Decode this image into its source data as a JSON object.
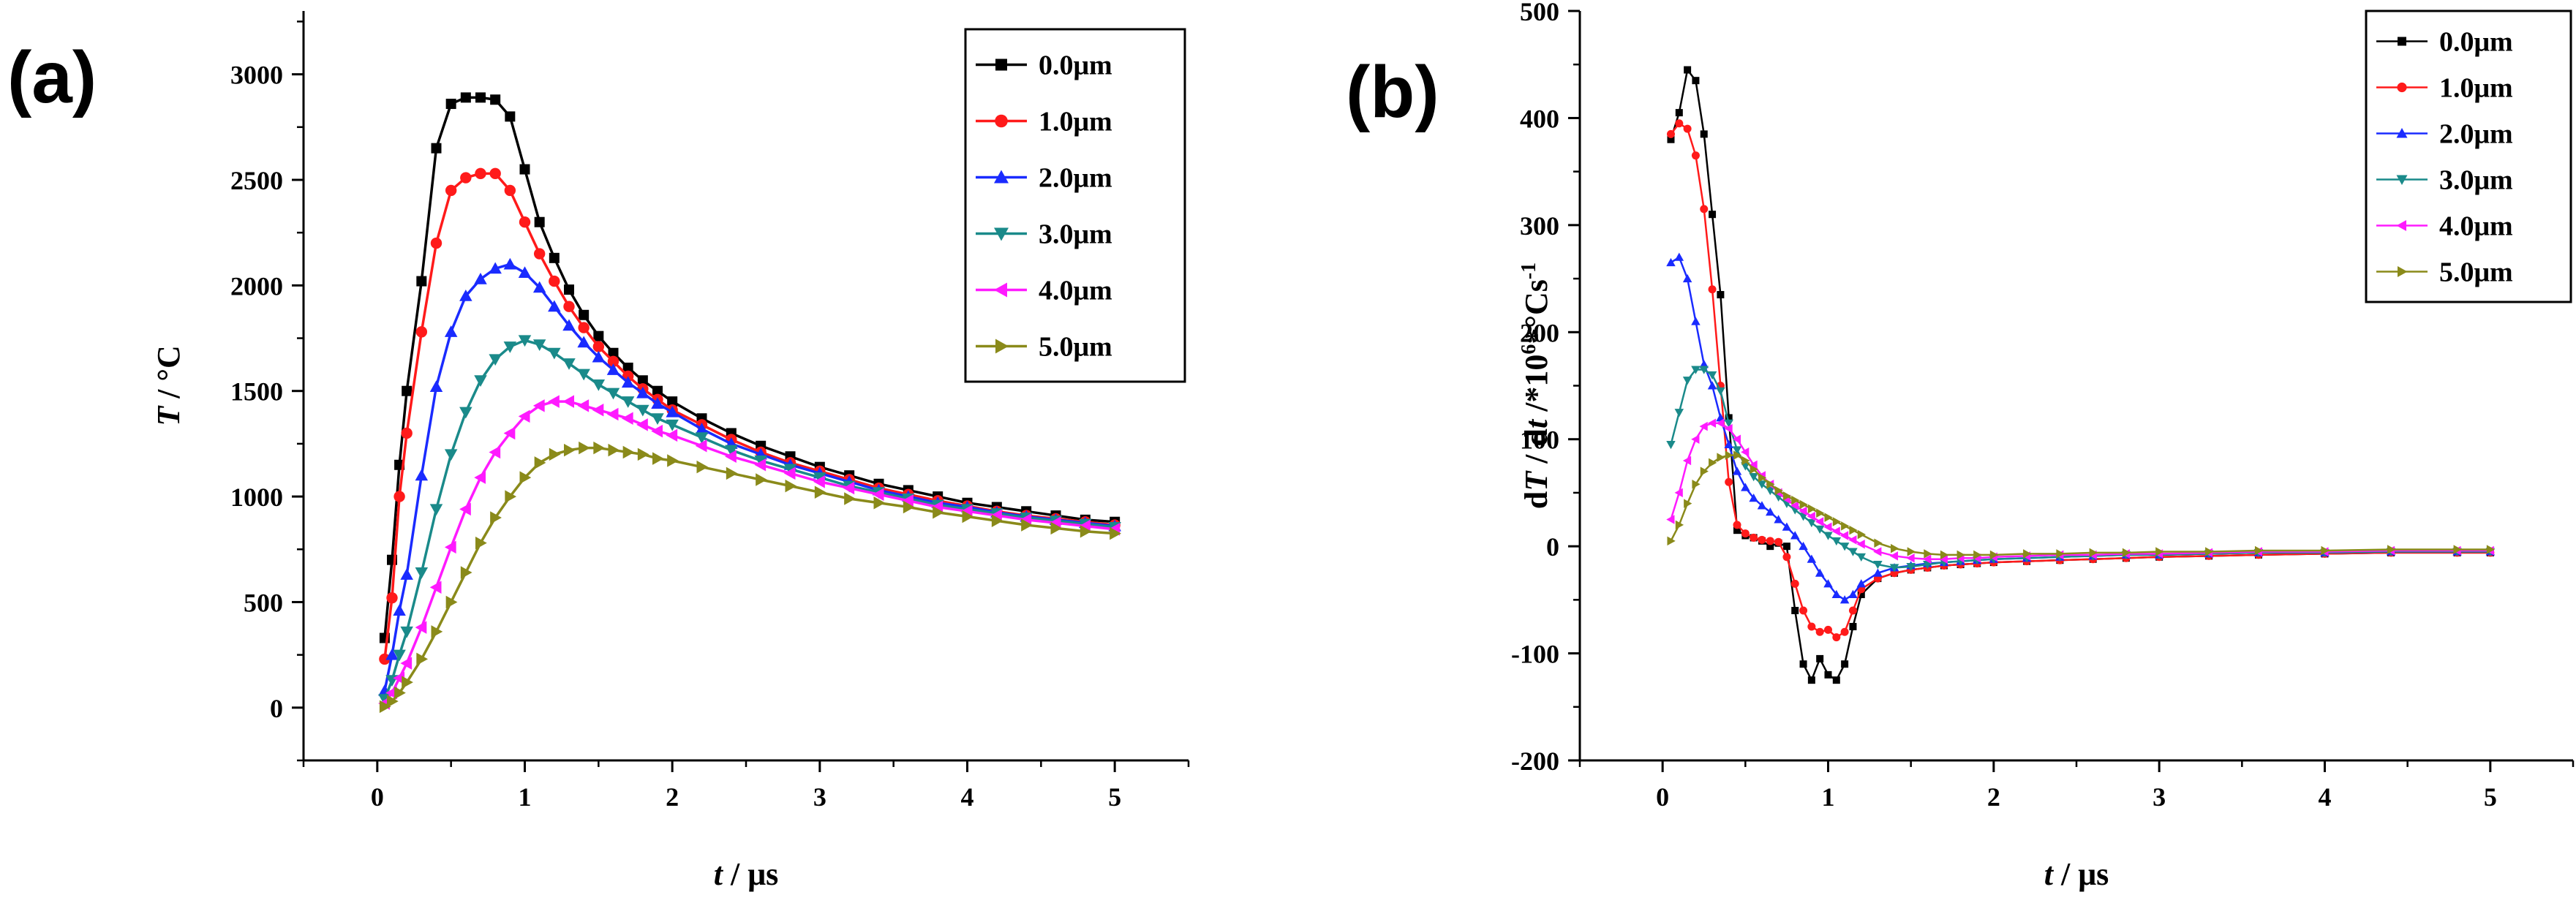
{
  "chart_data": [
    {
      "type": "line",
      "panel_label": "(a)",
      "xlabel": "t / μs",
      "xlabel_italic": "t",
      "xlabel_rest": " / μs",
      "ylabel_italic": "T",
      "ylabel_rest": " / °C",
      "xlim": [
        -0.5,
        5.5
      ],
      "ylim": [
        -250,
        3300
      ],
      "xticks": [
        0,
        1,
        2,
        3,
        4,
        5
      ],
      "yticks": [
        0,
        500,
        1000,
        1500,
        2000,
        2500,
        3000
      ],
      "marker_size": 1.0,
      "legend_position": "top-right",
      "series": [
        {
          "name": "0.0μm",
          "color": "#000000",
          "marker": "square",
          "x": [
            0.05,
            0.1,
            0.15,
            0.2,
            0.3,
            0.4,
            0.5,
            0.6,
            0.7,
            0.8,
            0.9,
            1.0,
            1.1,
            1.2,
            1.3,
            1.4,
            1.5,
            1.6,
            1.7,
            1.8,
            1.9,
            2.0,
            2.2,
            2.4,
            2.6,
            2.8,
            3.0,
            3.2,
            3.4,
            3.6,
            3.8,
            4.0,
            4.2,
            4.4,
            4.6,
            4.8,
            5.0
          ],
          "y": [
            330,
            700,
            1150,
            1500,
            2020,
            2650,
            2860,
            2890,
            2890,
            2880,
            2800,
            2550,
            2300,
            2130,
            1980,
            1860,
            1760,
            1680,
            1610,
            1550,
            1500,
            1450,
            1370,
            1300,
            1240,
            1190,
            1140,
            1100,
            1060,
            1030,
            1000,
            970,
            950,
            930,
            910,
            890,
            880
          ]
        },
        {
          "name": "1.0μm",
          "color": "#ff1a1a",
          "marker": "circle",
          "x": [
            0.05,
            0.1,
            0.15,
            0.2,
            0.3,
            0.4,
            0.5,
            0.6,
            0.7,
            0.8,
            0.9,
            1.0,
            1.1,
            1.2,
            1.3,
            1.4,
            1.5,
            1.6,
            1.7,
            1.8,
            1.9,
            2.0,
            2.2,
            2.4,
            2.6,
            2.8,
            3.0,
            3.2,
            3.4,
            3.6,
            3.8,
            4.0,
            4.2,
            4.4,
            4.6,
            4.8,
            5.0
          ],
          "y": [
            230,
            520,
            1000,
            1300,
            1780,
            2200,
            2450,
            2510,
            2530,
            2530,
            2450,
            2300,
            2150,
            2020,
            1900,
            1800,
            1710,
            1640,
            1570,
            1510,
            1460,
            1410,
            1340,
            1270,
            1210,
            1160,
            1120,
            1080,
            1040,
            1010,
            980,
            955,
            930,
            910,
            895,
            880,
            865
          ]
        },
        {
          "name": "2.0μm",
          "color": "#1a2bff",
          "marker": "triangle-up",
          "x": [
            0.05,
            0.1,
            0.15,
            0.2,
            0.3,
            0.4,
            0.5,
            0.6,
            0.7,
            0.8,
            0.9,
            1.0,
            1.1,
            1.2,
            1.3,
            1.4,
            1.5,
            1.6,
            1.7,
            1.8,
            1.9,
            2.0,
            2.2,
            2.4,
            2.6,
            2.8,
            3.0,
            3.2,
            3.4,
            3.6,
            3.8,
            4.0,
            4.2,
            4.4,
            4.6,
            4.8,
            5.0
          ],
          "y": [
            80,
            250,
            460,
            630,
            1100,
            1520,
            1780,
            1950,
            2030,
            2080,
            2100,
            2060,
            1990,
            1900,
            1810,
            1730,
            1660,
            1600,
            1540,
            1490,
            1440,
            1400,
            1320,
            1250,
            1200,
            1150,
            1110,
            1070,
            1030,
            1000,
            970,
            950,
            925,
            905,
            890,
            875,
            860
          ]
        },
        {
          "name": "3.0μm",
          "color": "#1a8a8a",
          "marker": "triangle-down",
          "x": [
            0.05,
            0.1,
            0.15,
            0.2,
            0.3,
            0.4,
            0.5,
            0.6,
            0.7,
            0.8,
            0.9,
            1.0,
            1.1,
            1.2,
            1.3,
            1.4,
            1.5,
            1.6,
            1.7,
            1.8,
            1.9,
            2.0,
            2.2,
            2.4,
            2.6,
            2.8,
            3.0,
            3.2,
            3.4,
            3.6,
            3.8,
            4.0,
            4.2,
            4.4,
            4.6,
            4.8,
            5.0
          ],
          "y": [
            40,
            130,
            250,
            360,
            640,
            940,
            1200,
            1400,
            1550,
            1650,
            1710,
            1740,
            1720,
            1680,
            1630,
            1580,
            1530,
            1490,
            1450,
            1410,
            1370,
            1340,
            1280,
            1220,
            1170,
            1130,
            1090,
            1050,
            1020,
            990,
            960,
            940,
            920,
            900,
            885,
            870,
            855
          ]
        },
        {
          "name": "4.0μm",
          "color": "#ff1aff",
          "marker": "triangle-left",
          "x": [
            0.05,
            0.1,
            0.15,
            0.2,
            0.3,
            0.4,
            0.5,
            0.6,
            0.7,
            0.8,
            0.9,
            1.0,
            1.1,
            1.2,
            1.3,
            1.4,
            1.5,
            1.6,
            1.7,
            1.8,
            1.9,
            2.0,
            2.2,
            2.4,
            2.6,
            2.8,
            3.0,
            3.2,
            3.4,
            3.6,
            3.8,
            4.0,
            4.2,
            4.4,
            4.6,
            4.8,
            5.0
          ],
          "y": [
            20,
            70,
            140,
            210,
            380,
            570,
            760,
            940,
            1090,
            1210,
            1300,
            1380,
            1430,
            1450,
            1450,
            1430,
            1410,
            1390,
            1370,
            1340,
            1310,
            1290,
            1240,
            1190,
            1150,
            1110,
            1070,
            1040,
            1010,
            980,
            950,
            930,
            910,
            890,
            875,
            860,
            845
          ]
        },
        {
          "name": "5.0μm",
          "color": "#8a8a1a",
          "marker": "triangle-right",
          "x": [
            0.05,
            0.1,
            0.15,
            0.2,
            0.3,
            0.4,
            0.5,
            0.6,
            0.7,
            0.8,
            0.9,
            1.0,
            1.1,
            1.2,
            1.3,
            1.4,
            1.5,
            1.6,
            1.7,
            1.8,
            1.9,
            2.0,
            2.2,
            2.4,
            2.6,
            2.8,
            3.0,
            3.2,
            3.4,
            3.6,
            3.8,
            4.0,
            4.2,
            4.4,
            4.6,
            4.8,
            5.0
          ],
          "y": [
            5,
            30,
            70,
            120,
            230,
            360,
            500,
            640,
            780,
            900,
            1000,
            1090,
            1160,
            1200,
            1220,
            1230,
            1230,
            1220,
            1210,
            1200,
            1180,
            1170,
            1140,
            1110,
            1080,
            1050,
            1020,
            990,
            970,
            950,
            925,
            905,
            885,
            865,
            850,
            835,
            825
          ]
        }
      ]
    },
    {
      "type": "line",
      "panel_label": "(b)",
      "xlabel": "t / μs",
      "xlabel_italic": "t",
      "xlabel_rest": " / μs",
      "ylabel_prefix": "d",
      "ylabel_italic": "T",
      "ylabel_mid": " / d",
      "ylabel_italic2": "t",
      "ylabel_base": " /*10",
      "ylabel_sup1": "6",
      "ylabel_unit": "*°Cs",
      "ylabel_sup2": "-1",
      "xlim": [
        -0.5,
        5.5
      ],
      "ylim": [
        -200,
        500
      ],
      "xticks": [
        0,
        1,
        2,
        3,
        4,
        5
      ],
      "yticks": [
        -200,
        -100,
        0,
        100,
        200,
        300,
        400,
        500
      ],
      "marker_size": 0.6,
      "legend_position": "top-right",
      "series": [
        {
          "name": "0.0μm",
          "color": "#000000",
          "marker": "square",
          "x": [
            0.05,
            0.1,
            0.15,
            0.2,
            0.25,
            0.3,
            0.35,
            0.4,
            0.45,
            0.5,
            0.55,
            0.6,
            0.65,
            0.7,
            0.75,
            0.8,
            0.85,
            0.9,
            0.95,
            1.0,
            1.05,
            1.1,
            1.15,
            1.2,
            1.3,
            1.4,
            1.5,
            1.6,
            1.7,
            1.8,
            1.9,
            2.0,
            2.2,
            2.4,
            2.6,
            2.8,
            3.0,
            3.3,
            3.6,
            4.0,
            4.4,
            4.8,
            5.0
          ],
          "y": [
            380,
            405,
            445,
            435,
            385,
            310,
            235,
            120,
            15,
            10,
            8,
            5,
            0,
            3,
            0,
            -60,
            -110,
            -125,
            -105,
            -120,
            -125,
            -110,
            -75,
            -45,
            -30,
            -25,
            -22,
            -20,
            -18,
            -17,
            -16,
            -15,
            -14,
            -13,
            -12,
            -11,
            -10,
            -9,
            -8,
            -7,
            -6,
            -6,
            -6
          ]
        },
        {
          "name": "1.0μm",
          "color": "#ff1a1a",
          "marker": "circle",
          "x": [
            0.05,
            0.1,
            0.15,
            0.2,
            0.25,
            0.3,
            0.35,
            0.4,
            0.45,
            0.5,
            0.55,
            0.6,
            0.65,
            0.7,
            0.75,
            0.8,
            0.85,
            0.9,
            0.95,
            1.0,
            1.05,
            1.1,
            1.15,
            1.2,
            1.3,
            1.4,
            1.5,
            1.6,
            1.7,
            1.8,
            1.9,
            2.0,
            2.2,
            2.4,
            2.6,
            2.8,
            3.0,
            3.3,
            3.6,
            4.0,
            4.4,
            4.8,
            5.0
          ],
          "y": [
            385,
            395,
            390,
            365,
            315,
            240,
            150,
            60,
            20,
            12,
            8,
            6,
            5,
            4,
            -10,
            -35,
            -60,
            -75,
            -80,
            -78,
            -85,
            -80,
            -60,
            -40,
            -30,
            -25,
            -22,
            -20,
            -18,
            -17,
            -16,
            -15,
            -14,
            -13,
            -12,
            -11,
            -10,
            -9,
            -8,
            -7,
            -6,
            -6,
            -6
          ]
        },
        {
          "name": "2.0μm",
          "color": "#1a2bff",
          "marker": "triangle-up",
          "x": [
            0.05,
            0.1,
            0.15,
            0.2,
            0.25,
            0.3,
            0.35,
            0.4,
            0.45,
            0.5,
            0.55,
            0.6,
            0.65,
            0.7,
            0.75,
            0.8,
            0.85,
            0.9,
            0.95,
            1.0,
            1.05,
            1.1,
            1.15,
            1.2,
            1.3,
            1.4,
            1.5,
            1.6,
            1.7,
            1.8,
            1.9,
            2.0,
            2.2,
            2.4,
            2.6,
            2.8,
            3.0,
            3.3,
            3.6,
            4.0,
            4.4,
            4.8,
            5.0
          ],
          "y": [
            265,
            270,
            250,
            210,
            170,
            150,
            120,
            95,
            70,
            55,
            45,
            38,
            32,
            25,
            18,
            10,
            0,
            -12,
            -25,
            -35,
            -45,
            -50,
            -45,
            -35,
            -25,
            -20,
            -18,
            -16,
            -15,
            -14,
            -13,
            -12,
            -11,
            -10,
            -9,
            -8,
            -8,
            -7,
            -6,
            -6,
            -5,
            -5,
            -5
          ]
        },
        {
          "name": "3.0μm",
          "color": "#1a8a8a",
          "marker": "triangle-down",
          "x": [
            0.05,
            0.1,
            0.15,
            0.2,
            0.25,
            0.3,
            0.35,
            0.4,
            0.45,
            0.5,
            0.55,
            0.6,
            0.65,
            0.7,
            0.75,
            0.8,
            0.85,
            0.9,
            0.95,
            1.0,
            1.05,
            1.1,
            1.15,
            1.2,
            1.3,
            1.4,
            1.5,
            1.6,
            1.7,
            1.8,
            1.9,
            2.0,
            2.2,
            2.4,
            2.6,
            2.8,
            3.0,
            3.3,
            3.6,
            4.0,
            4.4,
            4.8,
            5.0
          ],
          "y": [
            95,
            125,
            155,
            165,
            165,
            160,
            145,
            115,
            90,
            75,
            65,
            58,
            52,
            46,
            40,
            34,
            28,
            22,
            16,
            10,
            5,
            0,
            -5,
            -10,
            -17,
            -20,
            -19,
            -17,
            -15,
            -14,
            -13,
            -12,
            -11,
            -10,
            -9,
            -8,
            -8,
            -7,
            -6,
            -6,
            -5,
            -5,
            -5
          ]
        },
        {
          "name": "4.0μm",
          "color": "#ff1aff",
          "marker": "triangle-left",
          "x": [
            0.05,
            0.1,
            0.15,
            0.2,
            0.25,
            0.3,
            0.35,
            0.4,
            0.45,
            0.5,
            0.55,
            0.6,
            0.65,
            0.7,
            0.75,
            0.8,
            0.85,
            0.9,
            0.95,
            1.0,
            1.05,
            1.1,
            1.15,
            1.2,
            1.3,
            1.4,
            1.5,
            1.6,
            1.7,
            1.8,
            1.9,
            2.0,
            2.2,
            2.4,
            2.6,
            2.8,
            3.0,
            3.3,
            3.6,
            4.0,
            4.4,
            4.8,
            5.0
          ],
          "y": [
            25,
            50,
            80,
            100,
            112,
            115,
            115,
            110,
            100,
            88,
            76,
            66,
            58,
            50,
            44,
            38,
            33,
            28,
            23,
            18,
            14,
            10,
            6,
            2,
            -5,
            -9,
            -11,
            -12,
            -12,
            -11,
            -11,
            -10,
            -9,
            -8,
            -8,
            -7,
            -7,
            -6,
            -5,
            -5,
            -4,
            -4,
            -4
          ]
        },
        {
          "name": "5.0μm",
          "color": "#8a8a1a",
          "marker": "triangle-right",
          "x": [
            0.05,
            0.1,
            0.15,
            0.2,
            0.25,
            0.3,
            0.35,
            0.4,
            0.45,
            0.5,
            0.55,
            0.6,
            0.65,
            0.7,
            0.75,
            0.8,
            0.85,
            0.9,
            0.95,
            1.0,
            1.05,
            1.1,
            1.15,
            1.2,
            1.3,
            1.4,
            1.5,
            1.6,
            1.7,
            1.8,
            1.9,
            2.0,
            2.2,
            2.4,
            2.6,
            2.8,
            3.0,
            3.3,
            3.6,
            4.0,
            4.4,
            4.8,
            5.0
          ],
          "y": [
            5,
            20,
            40,
            58,
            70,
            78,
            83,
            85,
            85,
            80,
            72,
            64,
            58,
            52,
            47,
            43,
            39,
            35,
            31,
            27,
            23,
            19,
            15,
            11,
            3,
            -2,
            -5,
            -7,
            -8,
            -8,
            -8,
            -8,
            -7,
            -7,
            -6,
            -6,
            -5,
            -5,
            -4,
            -4,
            -3,
            -3,
            -3
          ]
        }
      ]
    }
  ]
}
